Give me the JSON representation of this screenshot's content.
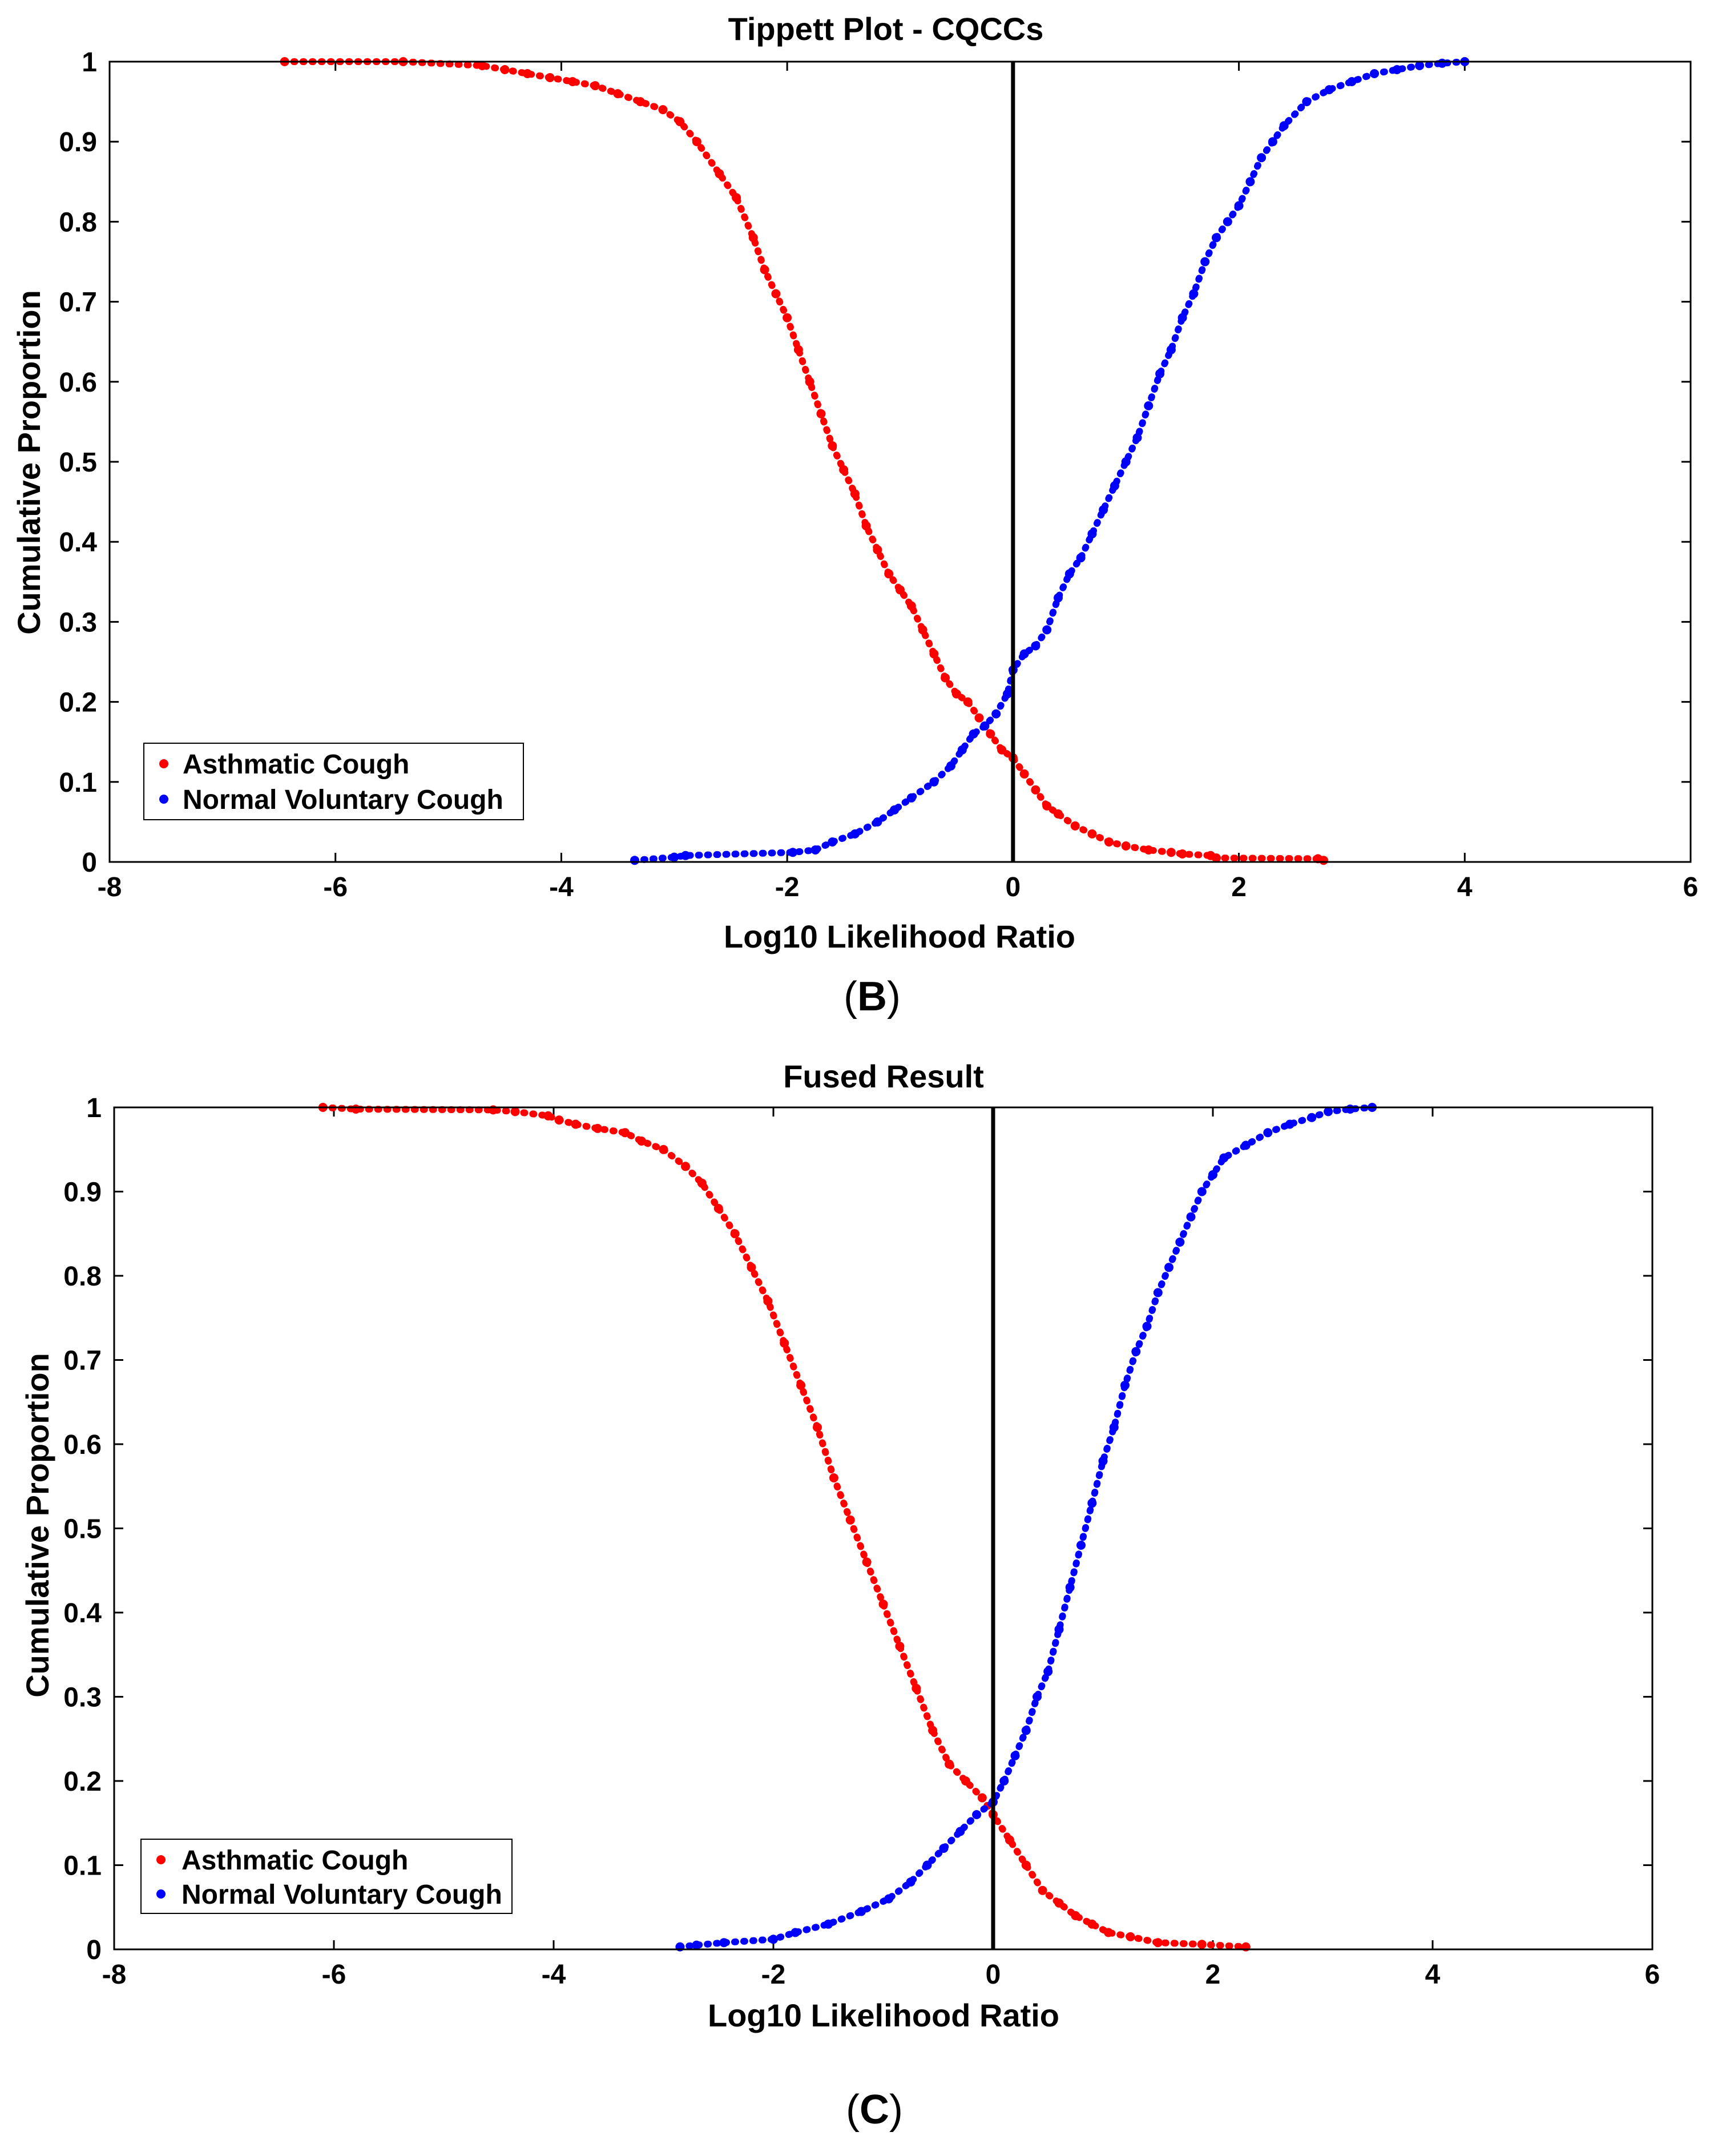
{
  "colors": {
    "asthmatic": "#ff0000",
    "normal": "#0000ff",
    "axis": "#000000",
    "background": "#ffffff"
  },
  "chart_data": [
    {
      "type": "scatter",
      "panel": "B",
      "title": "Tippett Plot - CQCCs",
      "xlabel": "Log10 Likelihood Ratio",
      "ylabel": "Cumulative Proportion",
      "xlim": [
        -8,
        6
      ],
      "ylim": [
        0,
        1
      ],
      "xticks": [
        "-8",
        "-6",
        "-4",
        "-2",
        "0",
        "2",
        "4",
        "6"
      ],
      "yticks": [
        "0",
        "0.1",
        "0.2",
        "0.3",
        "0.4",
        "0.5",
        "0.6",
        "0.7",
        "0.8",
        "0.9",
        "1"
      ],
      "vertical_line_x": 0,
      "grid": false,
      "legend_position": "lower-left",
      "series": [
        {
          "name": "Asthmatic Cough",
          "color": "#ff0000",
          "x": [
            -6.45,
            -5.4,
            -4.7,
            -4.5,
            -4.3,
            -4.1,
            -3.9,
            -3.7,
            -3.5,
            -3.3,
            -3.1,
            -2.95,
            -2.8,
            -2.6,
            -2.45,
            -2.3,
            -2.2,
            -2.1,
            -2.0,
            -1.9,
            -1.8,
            -1.7,
            -1.6,
            -1.5,
            -1.4,
            -1.3,
            -1.2,
            -1.1,
            -1.0,
            -0.9,
            -0.8,
            -0.7,
            -0.6,
            -0.5,
            -0.4,
            -0.3,
            -0.2,
            -0.1,
            0.0,
            0.1,
            0.2,
            0.3,
            0.4,
            0.55,
            0.7,
            0.85,
            1.0,
            1.2,
            1.4,
            1.5,
            1.75,
            1.8,
            2.7,
            2.75
          ],
          "y": [
            1.0,
            1.0,
            0.995,
            0.99,
            0.985,
            0.98,
            0.975,
            0.97,
            0.96,
            0.95,
            0.94,
            0.925,
            0.9,
            0.86,
            0.83,
            0.78,
            0.74,
            0.71,
            0.68,
            0.64,
            0.6,
            0.56,
            0.52,
            0.49,
            0.46,
            0.42,
            0.39,
            0.36,
            0.34,
            0.32,
            0.29,
            0.26,
            0.23,
            0.21,
            0.2,
            0.18,
            0.16,
            0.14,
            0.13,
            0.11,
            0.09,
            0.07,
            0.06,
            0.045,
            0.035,
            0.025,
            0.02,
            0.015,
            0.012,
            0.01,
            0.008,
            0.005,
            0.004,
            0.002
          ]
        },
        {
          "name": "Normal Voluntary Cough",
          "color": "#0000ff",
          "x": [
            -3.35,
            -3.0,
            -2.9,
            -1.95,
            -1.75,
            -1.6,
            -1.4,
            -1.2,
            -1.05,
            -0.9,
            -0.7,
            -0.55,
            -0.45,
            -0.35,
            -0.25,
            -0.15,
            -0.05,
            0.0,
            0.1,
            0.2,
            0.3,
            0.4,
            0.5,
            0.6,
            0.7,
            0.8,
            0.9,
            1.0,
            1.1,
            1.2,
            1.3,
            1.4,
            1.5,
            1.6,
            1.7,
            1.8,
            1.9,
            2.0,
            2.1,
            2.2,
            2.3,
            2.4,
            2.6,
            2.8,
            3.0,
            3.2,
            3.4,
            3.6,
            3.8,
            4.0
          ],
          "y": [
            0.002,
            0.006,
            0.008,
            0.012,
            0.015,
            0.025,
            0.035,
            0.05,
            0.065,
            0.08,
            0.1,
            0.12,
            0.14,
            0.16,
            0.17,
            0.185,
            0.21,
            0.24,
            0.26,
            0.27,
            0.29,
            0.33,
            0.36,
            0.38,
            0.41,
            0.44,
            0.47,
            0.5,
            0.53,
            0.57,
            0.61,
            0.64,
            0.68,
            0.71,
            0.75,
            0.78,
            0.8,
            0.82,
            0.85,
            0.88,
            0.9,
            0.92,
            0.95,
            0.965,
            0.975,
            0.985,
            0.99,
            0.995,
            0.998,
            1.0
          ]
        }
      ]
    },
    {
      "type": "scatter",
      "panel": "C",
      "title": "Fused Result",
      "xlabel": "Log10 Likelihood Ratio",
      "ylabel": "Cumulative Proportion",
      "xlim": [
        -8,
        6
      ],
      "ylim": [
        0,
        1
      ],
      "xticks": [
        "-8",
        "-6",
        "-4",
        "-2",
        "0",
        "2",
        "4",
        "6"
      ],
      "yticks": [
        "0",
        "0.1",
        "0.2",
        "0.3",
        "0.4",
        "0.5",
        "0.6",
        "0.7",
        "0.8",
        "0.9",
        "1"
      ],
      "vertical_line_x": 0,
      "grid": false,
      "legend_position": "lower-left",
      "series": [
        {
          "name": "Asthmatic Cough",
          "color": "#ff0000",
          "x": [
            -6.1,
            -5.8,
            -4.55,
            -4.35,
            -4.05,
            -3.95,
            -3.8,
            -3.6,
            -3.35,
            -3.2,
            -3.0,
            -2.8,
            -2.65,
            -2.5,
            -2.35,
            -2.2,
            -2.05,
            -1.9,
            -1.75,
            -1.6,
            -1.45,
            -1.3,
            -1.15,
            -1.0,
            -0.85,
            -0.7,
            -0.55,
            -0.4,
            -0.25,
            -0.1,
            0.0,
            0.15,
            0.3,
            0.45,
            0.6,
            0.75,
            0.9,
            1.05,
            1.25,
            1.5,
            1.9,
            2.3
          ],
          "y": [
            1.0,
            0.998,
            0.997,
            0.995,
            0.99,
            0.985,
            0.98,
            0.975,
            0.97,
            0.96,
            0.95,
            0.93,
            0.91,
            0.88,
            0.85,
            0.81,
            0.77,
            0.72,
            0.67,
            0.62,
            0.56,
            0.51,
            0.46,
            0.41,
            0.36,
            0.31,
            0.26,
            0.22,
            0.2,
            0.18,
            0.16,
            0.13,
            0.1,
            0.07,
            0.055,
            0.04,
            0.03,
            0.02,
            0.015,
            0.008,
            0.006,
            0.003
          ]
        },
        {
          "name": "Normal Voluntary Cough",
          "color": "#0000ff",
          "x": [
            -2.85,
            -2.7,
            -2.45,
            -2.0,
            -1.8,
            -1.5,
            -1.2,
            -0.95,
            -0.75,
            -0.6,
            -0.45,
            -0.3,
            -0.15,
            0.0,
            0.1,
            0.2,
            0.3,
            0.4,
            0.5,
            0.6,
            0.7,
            0.8,
            0.9,
            1.0,
            1.1,
            1.2,
            1.3,
            1.4,
            1.5,
            1.6,
            1.7,
            1.8,
            1.9,
            2.0,
            2.1,
            2.3,
            2.5,
            2.7,
            2.9,
            3.05,
            3.25,
            3.45
          ],
          "y": [
            0.003,
            0.005,
            0.008,
            0.012,
            0.02,
            0.03,
            0.045,
            0.06,
            0.08,
            0.1,
            0.12,
            0.14,
            0.16,
            0.175,
            0.2,
            0.23,
            0.26,
            0.3,
            0.33,
            0.38,
            0.43,
            0.48,
            0.53,
            0.58,
            0.62,
            0.67,
            0.71,
            0.74,
            0.78,
            0.81,
            0.84,
            0.87,
            0.9,
            0.92,
            0.94,
            0.955,
            0.97,
            0.98,
            0.988,
            0.995,
            0.998,
            1.0
          ]
        }
      ]
    }
  ],
  "captions": {
    "B": {
      "open": "(",
      "letter": "B",
      "close": ")"
    },
    "C": {
      "open": "(",
      "letter": "C",
      "close": ")"
    }
  }
}
